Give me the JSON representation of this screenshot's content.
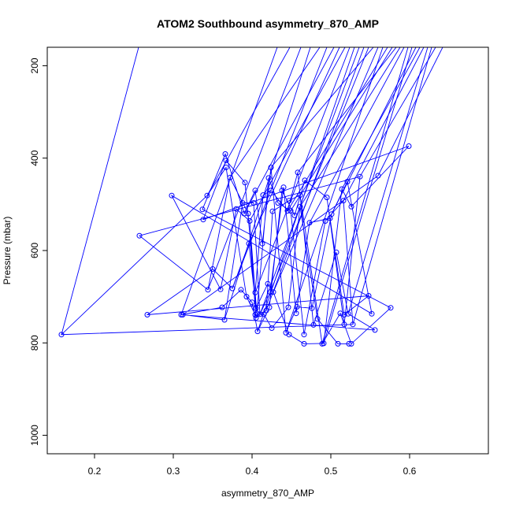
{
  "chart_data": {
    "type": "line",
    "title": "ATOM2 Southbound asymmetry_870_AMP",
    "xlabel": "asymmetry_870_AMP",
    "ylabel": "Pressure (mbar)",
    "xlim": [
      0.14,
      0.7
    ],
    "ylim": [
      1040,
      160
    ],
    "y_reversed": true,
    "x_ticks": [
      0.2,
      0.3,
      0.4,
      0.5,
      0.6
    ],
    "x_tick_labels": [
      "0.2",
      "0.3",
      "0.4",
      "0.5",
      "0.6"
    ],
    "y_ticks": [
      200,
      400,
      600,
      800,
      1000
    ],
    "y_tick_labels": [
      "200",
      "400",
      "600",
      "800",
      "1000"
    ],
    "grid": false,
    "series_color": "#0000ff",
    "marker": "open-circle",
    "points": [
      {
        "x": 0.158,
        "y": 782
      },
      {
        "x": 0.257,
        "y": 568
      },
      {
        "x": 0.267,
        "y": 739
      },
      {
        "x": 0.298,
        "y": 481
      },
      {
        "x": 0.31,
        "y": 739
      },
      {
        "x": 0.312,
        "y": 739
      },
      {
        "x": 0.337,
        "y": 511
      },
      {
        "x": 0.338,
        "y": 533
      },
      {
        "x": 0.343,
        "y": 481
      },
      {
        "x": 0.344,
        "y": 685
      },
      {
        "x": 0.35,
        "y": 640
      },
      {
        "x": 0.36,
        "y": 684
      },
      {
        "x": 0.362,
        "y": 723
      },
      {
        "x": 0.365,
        "y": 750
      },
      {
        "x": 0.366,
        "y": 391
      },
      {
        "x": 0.367,
        "y": 405
      },
      {
        "x": 0.367,
        "y": 420
      },
      {
        "x": 0.372,
        "y": 442
      },
      {
        "x": 0.375,
        "y": 682
      },
      {
        "x": 0.38,
        "y": 510
      },
      {
        "x": 0.386,
        "y": 685
      },
      {
        "x": 0.388,
        "y": 497
      },
      {
        "x": 0.39,
        "y": 520
      },
      {
        "x": 0.391,
        "y": 453
      },
      {
        "x": 0.393,
        "y": 700
      },
      {
        "x": 0.395,
        "y": 520
      },
      {
        "x": 0.396,
        "y": 585
      },
      {
        "x": 0.397,
        "y": 536
      },
      {
        "x": 0.4,
        "y": 712
      },
      {
        "x": 0.402,
        "y": 497
      },
      {
        "x": 0.404,
        "y": 470
      },
      {
        "x": 0.404,
        "y": 691
      },
      {
        "x": 0.404,
        "y": 739
      },
      {
        "x": 0.405,
        "y": 746
      },
      {
        "x": 0.405,
        "y": 725
      },
      {
        "x": 0.406,
        "y": 736
      },
      {
        "x": 0.407,
        "y": 775
      },
      {
        "x": 0.41,
        "y": 738
      },
      {
        "x": 0.413,
        "y": 585
      },
      {
        "x": 0.414,
        "y": 480
      },
      {
        "x": 0.415,
        "y": 738
      },
      {
        "x": 0.418,
        "y": 730
      },
      {
        "x": 0.42,
        "y": 672
      },
      {
        "x": 0.421,
        "y": 443
      },
      {
        "x": 0.422,
        "y": 723
      },
      {
        "x": 0.423,
        "y": 690
      },
      {
        "x": 0.424,
        "y": 420
      },
      {
        "x": 0.424,
        "y": 470
      },
      {
        "x": 0.425,
        "y": 768
      },
      {
        "x": 0.426,
        "y": 515
      },
      {
        "x": 0.427,
        "y": 690
      },
      {
        "x": 0.433,
        "y": 497
      },
      {
        "x": 0.438,
        "y": 470
      },
      {
        "x": 0.44,
        "y": 463
      },
      {
        "x": 0.443,
        "y": 778
      },
      {
        "x": 0.445,
        "y": 514
      },
      {
        "x": 0.446,
        "y": 723
      },
      {
        "x": 0.447,
        "y": 492
      },
      {
        "x": 0.447,
        "y": 782
      },
      {
        "x": 0.449,
        "y": 514
      },
      {
        "x": 0.454,
        "y": 524
      },
      {
        "x": 0.456,
        "y": 736
      },
      {
        "x": 0.457,
        "y": 722
      },
      {
        "x": 0.458,
        "y": 431
      },
      {
        "x": 0.461,
        "y": 505
      },
      {
        "x": 0.461,
        "y": 480
      },
      {
        "x": 0.466,
        "y": 802
      },
      {
        "x": 0.466,
        "y": 782
      },
      {
        "x": 0.467,
        "y": 448
      },
      {
        "x": 0.473,
        "y": 540
      },
      {
        "x": 0.476,
        "y": 725
      },
      {
        "x": 0.478,
        "y": 761
      },
      {
        "x": 0.483,
        "y": 748
      },
      {
        "x": 0.489,
        "y": 802
      },
      {
        "x": 0.491,
        "y": 801
      },
      {
        "x": 0.493,
        "y": 536
      },
      {
        "x": 0.495,
        "y": 485
      },
      {
        "x": 0.499,
        "y": 530
      },
      {
        "x": 0.501,
        "y": 521
      },
      {
        "x": 0.507,
        "y": 604
      },
      {
        "x": 0.509,
        "y": 802
      },
      {
        "x": 0.512,
        "y": 736
      },
      {
        "x": 0.514,
        "y": 467
      },
      {
        "x": 0.516,
        "y": 492
      },
      {
        "x": 0.517,
        "y": 760
      },
      {
        "x": 0.517,
        "y": 739
      },
      {
        "x": 0.521,
        "y": 451
      },
      {
        "x": 0.522,
        "y": 737
      },
      {
        "x": 0.523,
        "y": 802
      },
      {
        "x": 0.526,
        "y": 802
      },
      {
        "x": 0.526,
        "y": 505
      },
      {
        "x": 0.528,
        "y": 760
      },
      {
        "x": 0.537,
        "y": 440
      },
      {
        "x": 0.548,
        "y": 698
      },
      {
        "x": 0.552,
        "y": 737
      },
      {
        "x": 0.556,
        "y": 772
      },
      {
        "x": 0.56,
        "y": 438
      },
      {
        "x": 0.576,
        "y": 724
      },
      {
        "x": 0.599,
        "y": 374
      }
    ],
    "upper_ends": [
      {
        "x": 0.256,
        "y": 160
      },
      {
        "x": 0.432,
        "y": 160
      },
      {
        "x": 0.448,
        "y": 160
      },
      {
        "x": 0.462,
        "y": 160
      },
      {
        "x": 0.474,
        "y": 160
      },
      {
        "x": 0.486,
        "y": 160
      },
      {
        "x": 0.495,
        "y": 160
      },
      {
        "x": 0.504,
        "y": 160
      },
      {
        "x": 0.511,
        "y": 160
      },
      {
        "x": 0.518,
        "y": 160
      },
      {
        "x": 0.524,
        "y": 160
      },
      {
        "x": 0.53,
        "y": 160
      },
      {
        "x": 0.536,
        "y": 160
      },
      {
        "x": 0.542,
        "y": 160
      },
      {
        "x": 0.548,
        "y": 160
      },
      {
        "x": 0.554,
        "y": 160
      },
      {
        "x": 0.56,
        "y": 160
      },
      {
        "x": 0.566,
        "y": 160
      },
      {
        "x": 0.572,
        "y": 160
      },
      {
        "x": 0.578,
        "y": 160
      },
      {
        "x": 0.583,
        "y": 160
      },
      {
        "x": 0.588,
        "y": 160
      },
      {
        "x": 0.593,
        "y": 160
      },
      {
        "x": 0.598,
        "y": 160
      },
      {
        "x": 0.603,
        "y": 160
      },
      {
        "x": 0.608,
        "y": 160
      },
      {
        "x": 0.613,
        "y": 160
      },
      {
        "x": 0.618,
        "y": 160
      },
      {
        "x": 0.623,
        "y": 160
      },
      {
        "x": 0.628,
        "y": 160
      },
      {
        "x": 0.633,
        "y": 160
      },
      {
        "x": 0.642,
        "y": 160
      }
    ]
  }
}
